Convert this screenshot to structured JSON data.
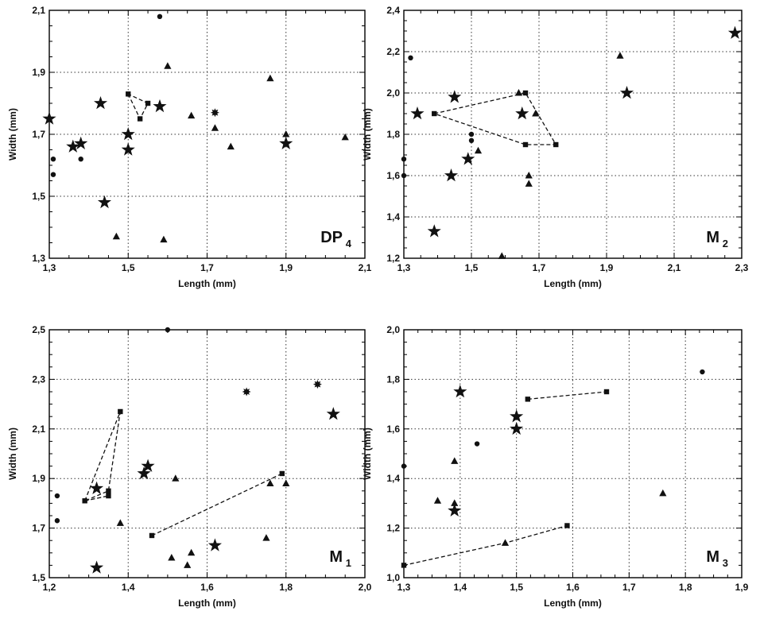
{
  "figure_label": "Scatter plots of tooth width vs length for DP4, M2, M1 and M3",
  "chart_data": [
    {
      "type": "scatter",
      "panel_label": "DP",
      "panel_sub": "4",
      "xlabel": "Length (mm)",
      "ylabel": "Width (mm)",
      "xlim": [
        1.3,
        2.1
      ],
      "ylim": [
        1.3,
        2.1
      ],
      "xticks": [
        "1,3",
        "1,5",
        "1,7",
        "1,9",
        "2,1"
      ],
      "yticks": [
        "1,3",
        "1,5",
        "1,7",
        "1,9",
        "2,1"
      ],
      "xtick_values": [
        1.3,
        1.5,
        1.7,
        1.9,
        2.1
      ],
      "ytick_values": [
        1.3,
        1.5,
        1.7,
        1.9,
        2.1
      ],
      "grid": true,
      "series": [
        {
          "marker": "circle",
          "points": [
            [
              1.31,
              1.62
            ],
            [
              1.31,
              1.57
            ],
            [
              1.38,
              1.62
            ],
            [
              1.58,
              2.08
            ]
          ]
        },
        {
          "marker": "triangle",
          "points": [
            [
              1.47,
              1.37
            ],
            [
              1.59,
              1.36
            ],
            [
              1.6,
              1.92
            ],
            [
              1.66,
              1.76
            ],
            [
              1.72,
              1.72
            ],
            [
              1.76,
              1.66
            ],
            [
              1.86,
              1.88
            ],
            [
              1.9,
              1.7
            ],
            [
              2.05,
              1.69
            ]
          ]
        },
        {
          "marker": "square",
          "points": [
            [
              1.5,
              1.83
            ],
            [
              1.53,
              1.75
            ],
            [
              1.55,
              1.8
            ]
          ]
        },
        {
          "marker": "star",
          "points": [
            [
              1.3,
              1.75
            ],
            [
              1.36,
              1.66
            ],
            [
              1.38,
              1.67
            ],
            [
              1.43,
              1.8
            ],
            [
              1.44,
              1.48
            ],
            [
              1.5,
              1.7
            ],
            [
              1.5,
              1.65
            ],
            [
              1.58,
              1.79
            ],
            [
              1.9,
              1.67
            ]
          ]
        },
        {
          "marker": "burst",
          "points": [
            [
              1.72,
              1.77
            ]
          ]
        }
      ],
      "polygons": [
        [
          [
            1.5,
            1.83
          ],
          [
            1.53,
            1.75
          ],
          [
            1.55,
            1.8
          ]
        ]
      ]
    },
    {
      "type": "scatter",
      "panel_label": "M",
      "panel_sub": "2",
      "xlabel": "Length (mm)",
      "ylabel": "Width (mm)",
      "xlim": [
        1.3,
        2.3
      ],
      "ylim": [
        1.2,
        2.4
      ],
      "xticks": [
        "1,3",
        "1,5",
        "1,7",
        "1,9",
        "2,1",
        "2,3"
      ],
      "yticks": [
        "1,2",
        "1,4",
        "1,6",
        "1,8",
        "2,0",
        "2,2",
        "2,4"
      ],
      "xtick_values": [
        1.3,
        1.5,
        1.7,
        1.9,
        2.1,
        2.3
      ],
      "ytick_values": [
        1.2,
        1.4,
        1.6,
        1.8,
        2.0,
        2.2,
        2.4
      ],
      "grid": true,
      "series": [
        {
          "marker": "circle",
          "points": [
            [
              1.3,
              1.6
            ],
            [
              1.3,
              1.68
            ],
            [
              1.32,
              2.17
            ],
            [
              1.5,
              1.8
            ],
            [
              1.5,
              1.77
            ]
          ]
        },
        {
          "marker": "triangle",
          "points": [
            [
              1.52,
              1.72
            ],
            [
              1.59,
              1.21
            ],
            [
              1.64,
              2.0
            ],
            [
              1.67,
              1.6
            ],
            [
              1.67,
              1.56
            ],
            [
              1.69,
              1.9
            ],
            [
              1.94,
              2.18
            ]
          ]
        },
        {
          "marker": "square",
          "points": [
            [
              1.39,
              1.9
            ],
            [
              1.66,
              2.0
            ],
            [
              1.66,
              1.75
            ],
            [
              1.75,
              1.75
            ]
          ]
        },
        {
          "marker": "star",
          "points": [
            [
              1.34,
              1.9
            ],
            [
              1.39,
              1.33
            ],
            [
              1.44,
              1.6
            ],
            [
              1.45,
              1.98
            ],
            [
              1.49,
              1.68
            ],
            [
              1.65,
              1.9
            ],
            [
              1.96,
              2.0
            ],
            [
              2.28,
              2.29
            ]
          ]
        }
      ],
      "polygons": [
        [
          [
            1.39,
            1.9
          ],
          [
            1.66,
            2.0
          ],
          [
            1.75,
            1.75
          ],
          [
            1.66,
            1.75
          ]
        ]
      ]
    },
    {
      "type": "scatter",
      "panel_label": "M",
      "panel_sub": "1",
      "xlabel": "Length (mm)",
      "ylabel": "Width (mm)",
      "xlim": [
        1.2,
        2.0
      ],
      "ylim": [
        1.5,
        2.5
      ],
      "xticks": [
        "1,2",
        "1,4",
        "1,6",
        "1,8",
        "2,0"
      ],
      "yticks": [
        "1,5",
        "1,7",
        "1,9",
        "2,1",
        "2,3",
        "2,5"
      ],
      "xtick_values": [
        1.2,
        1.4,
        1.6,
        1.8,
        2.0
      ],
      "ytick_values": [
        1.5,
        1.7,
        1.9,
        2.1,
        2.3,
        2.5
      ],
      "grid": true,
      "series": [
        {
          "marker": "circle",
          "points": [
            [
              1.22,
              1.83
            ],
            [
              1.22,
              1.73
            ],
            [
              1.5,
              2.5
            ]
          ]
        },
        {
          "marker": "triangle",
          "points": [
            [
              1.38,
              1.72
            ],
            [
              1.51,
              1.58
            ],
            [
              1.52,
              1.9
            ],
            [
              1.55,
              1.55
            ],
            [
              1.56,
              1.6
            ],
            [
              1.75,
              1.66
            ],
            [
              1.76,
              1.88
            ],
            [
              1.8,
              1.88
            ]
          ]
        },
        {
          "marker": "square",
          "points": [
            [
              1.29,
              1.81
            ],
            [
              1.35,
              1.85
            ],
            [
              1.35,
              1.83
            ],
            [
              1.38,
              2.17
            ],
            [
              1.46,
              1.67
            ],
            [
              1.79,
              1.92
            ]
          ]
        },
        {
          "marker": "star",
          "points": [
            [
              1.32,
              1.86
            ],
            [
              1.32,
              1.54
            ],
            [
              1.44,
              1.92
            ],
            [
              1.45,
              1.95
            ],
            [
              1.62,
              1.63
            ],
            [
              1.92,
              2.16
            ]
          ]
        },
        {
          "marker": "burst",
          "points": [
            [
              1.7,
              2.25
            ],
            [
              1.88,
              2.28
            ]
          ]
        }
      ],
      "polygons": [
        [
          [
            1.29,
            1.81
          ],
          [
            1.38,
            2.17
          ],
          [
            1.35,
            1.85
          ]
        ],
        [
          [
            1.29,
            1.81
          ],
          [
            1.35,
            1.83
          ]
        ]
      ],
      "lines": [
        [
          [
            1.46,
            1.67
          ],
          [
            1.79,
            1.92
          ]
        ]
      ]
    },
    {
      "type": "scatter",
      "panel_label": "M",
      "panel_sub": "3",
      "xlabel": "Length (mm)",
      "ylabel": "Width (mm)",
      "xlim": [
        1.3,
        1.9
      ],
      "ylim": [
        1.0,
        2.0
      ],
      "xticks": [
        "1,3",
        "1,4",
        "1,5",
        "1,6",
        "1,7",
        "1,8",
        "1,9"
      ],
      "yticks": [
        "1,0",
        "1,2",
        "1,4",
        "1,6",
        "1,8",
        "2,0"
      ],
      "xtick_values": [
        1.3,
        1.4,
        1.5,
        1.6,
        1.7,
        1.8,
        1.9
      ],
      "ytick_values": [
        1.0,
        1.2,
        1.4,
        1.6,
        1.8,
        2.0
      ],
      "grid": true,
      "series": [
        {
          "marker": "circle",
          "points": [
            [
              1.3,
              1.45
            ],
            [
              1.43,
              1.54
            ],
            [
              1.83,
              1.83
            ]
          ]
        },
        {
          "marker": "triangle",
          "points": [
            [
              1.36,
              1.31
            ],
            [
              1.39,
              1.47
            ],
            [
              1.39,
              1.3
            ],
            [
              1.48,
              1.14
            ],
            [
              1.76,
              1.34
            ]
          ]
        },
        {
          "marker": "square",
          "points": [
            [
              1.3,
              1.05
            ],
            [
              1.52,
              1.72
            ],
            [
              1.59,
              1.21
            ],
            [
              1.66,
              1.75
            ]
          ]
        },
        {
          "marker": "star",
          "points": [
            [
              1.39,
              1.27
            ],
            [
              1.4,
              1.75
            ],
            [
              1.5,
              1.65
            ],
            [
              1.5,
              1.6
            ]
          ]
        }
      ],
      "lines": [
        [
          [
            1.52,
            1.72
          ],
          [
            1.66,
            1.75
          ]
        ],
        [
          [
            1.3,
            1.05
          ],
          [
            1.48,
            1.14
          ],
          [
            1.59,
            1.21
          ]
        ]
      ]
    }
  ]
}
